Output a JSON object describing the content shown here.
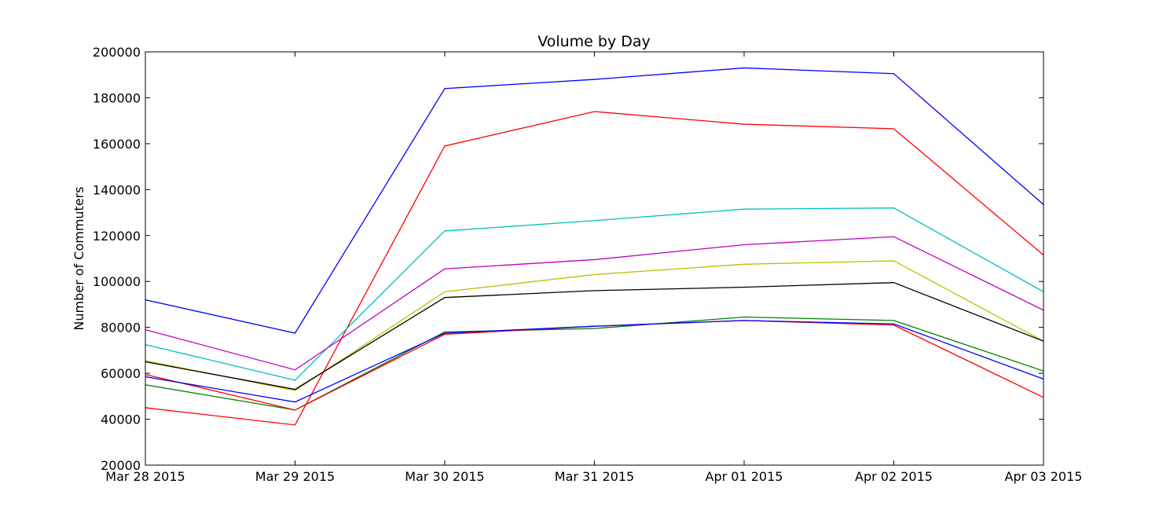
{
  "chart_data": {
    "type": "line",
    "title": "Volume by Day",
    "xlabel": "",
    "ylabel": "Number of Commuters",
    "x": [
      "Mar 28 2015",
      "Mar 29 2015",
      "Mar 30 2015",
      "Mar 31 2015",
      "Apr 01 2015",
      "Apr 02 2015",
      "Apr 03 2015"
    ],
    "ylim": [
      20000,
      200000
    ],
    "yticks": [
      "20000",
      "40000",
      "60000",
      "80000",
      "100000",
      "120000",
      "140000",
      "160000",
      "180000",
      "200000"
    ],
    "grid": false,
    "legend": "none",
    "series": [
      {
        "color": "#0000ff",
        "values": [
          92000,
          77500,
          184000,
          188000,
          193000,
          190500,
          133500
        ]
      },
      {
        "color": "#ff0000",
        "values": [
          45000,
          37500,
          159000,
          174000,
          168500,
          166500,
          111500
        ]
      },
      {
        "color": "#00bfbf",
        "values": [
          72500,
          57000,
          122000,
          126500,
          131500,
          132000,
          95500
        ]
      },
      {
        "color": "#bf00bf",
        "values": [
          79000,
          61500,
          105500,
          109500,
          116000,
          119500,
          87500
        ]
      },
      {
        "color": "#bfbf00",
        "values": [
          65500,
          52500,
          95500,
          103000,
          107500,
          109000,
          74000
        ]
      },
      {
        "color": "#000000",
        "values": [
          65000,
          53000,
          93000,
          96000,
          97500,
          99500,
          74000
        ]
      },
      {
        "color": "#008000",
        "values": [
          55000,
          44000,
          78000,
          79500,
          84500,
          83000,
          61000
        ]
      },
      {
        "color": "#ff0000",
        "values": [
          59500,
          44000,
          77000,
          80500,
          83000,
          81000,
          49500
        ]
      },
      {
        "color": "#0000ff",
        "values": [
          58500,
          47500,
          77500,
          80500,
          83000,
          81500,
          57500
        ]
      }
    ]
  }
}
